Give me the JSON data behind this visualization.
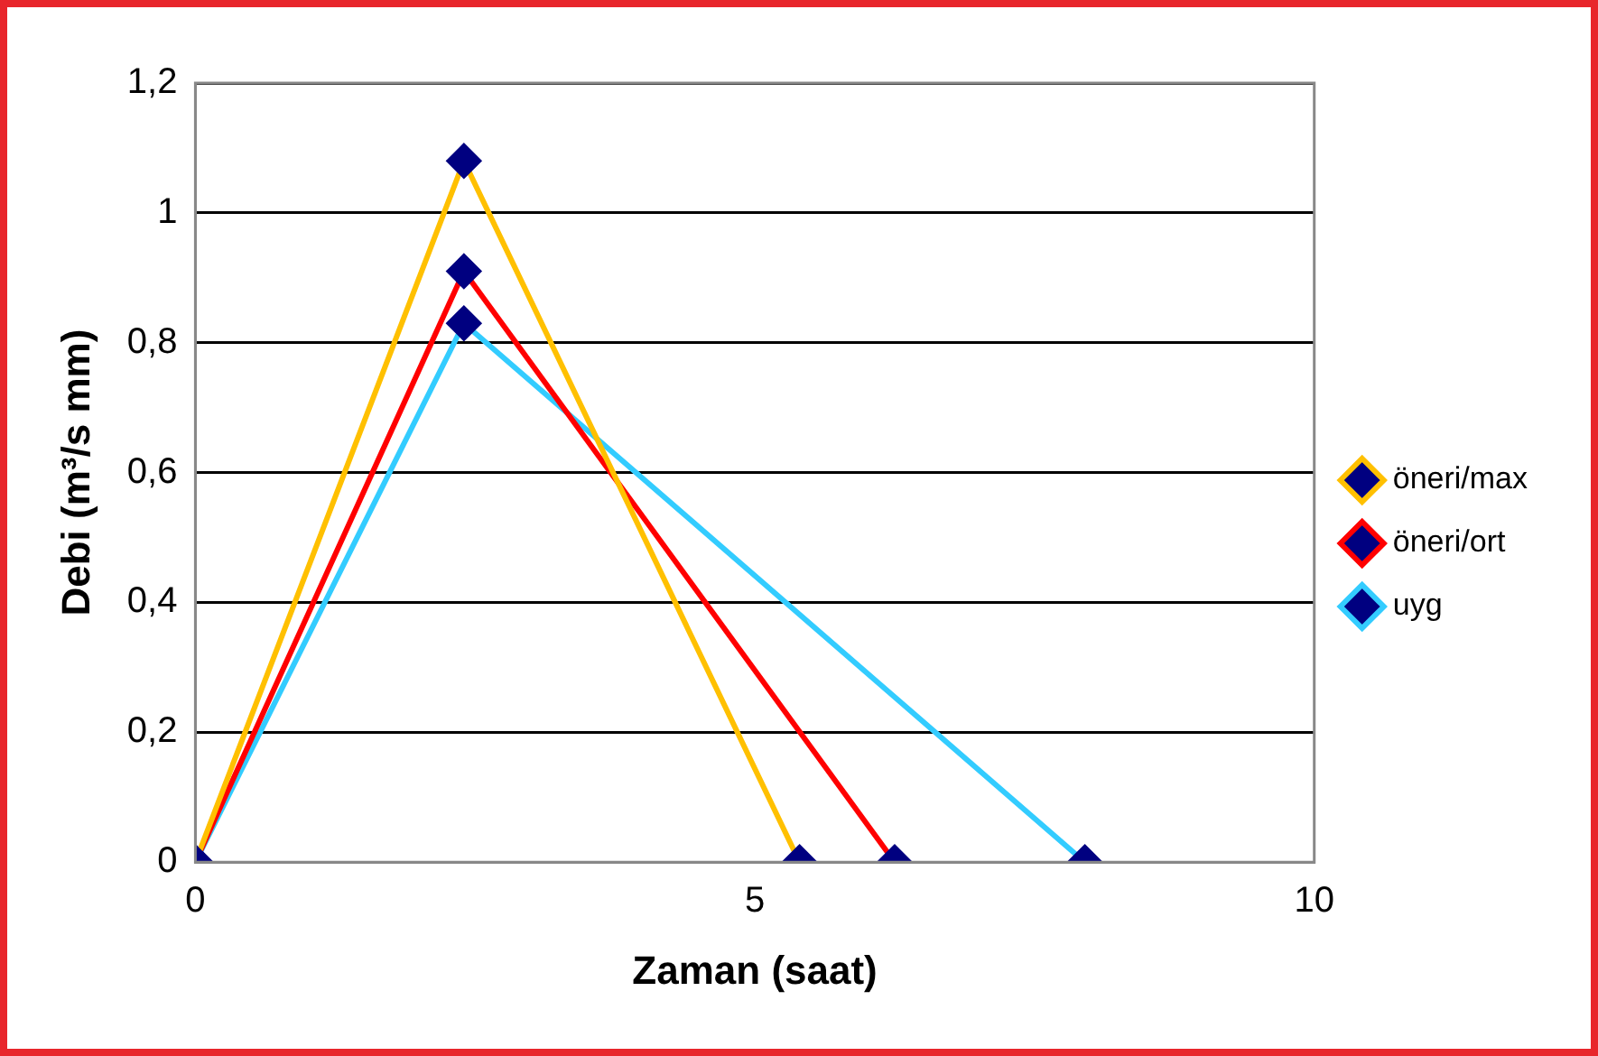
{
  "chart_data": {
    "type": "line",
    "xlabel": "Zaman (saat)",
    "ylabel": "Debi (m³/s mm)",
    "series": [
      {
        "name": "öneri/max",
        "color": "#ffc000",
        "x": [
          0,
          2.4,
          5.4
        ],
        "values": [
          0,
          1.08,
          0
        ]
      },
      {
        "name": "öneri/ort",
        "color": "#ff0000",
        "x": [
          0,
          2.4,
          6.25
        ],
        "values": [
          0,
          0.91,
          0
        ]
      },
      {
        "name": "uyg",
        "color": "#33ccff",
        "x": [
          0,
          2.4,
          7.95
        ],
        "values": [
          0,
          0.83,
          0
        ]
      }
    ],
    "xlim": [
      0,
      10
    ],
    "xticks": [
      0,
      5,
      10
    ],
    "ylim": [
      0,
      1.2
    ],
    "yticks": [
      0,
      {
        "value": 0.2,
        "label": "0,2"
      },
      {
        "value": 0.4,
        "label": "0,4"
      },
      {
        "value": 0.6,
        "label": "0,6"
      },
      {
        "value": 0.8,
        "label": "0,8"
      },
      1,
      {
        "value": 1.2,
        "label": "1,2"
      }
    ],
    "grid": "y",
    "legend": "right",
    "marker": "diamond",
    "line_style": "solid"
  }
}
